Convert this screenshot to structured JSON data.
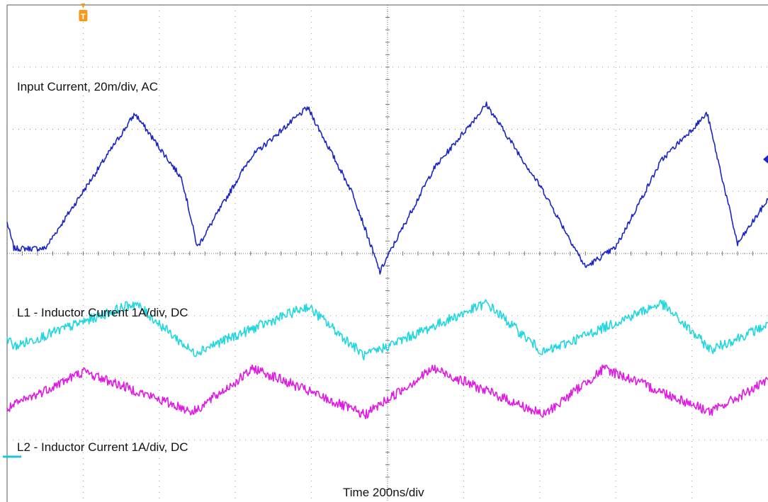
{
  "chart_data": {
    "type": "line",
    "title": "",
    "xlabel": "Time 200ns/div",
    "grid": true,
    "grid_divisions": {
      "x": 10,
      "y": 8
    },
    "trigger_marker": {
      "label": "T",
      "color": "#f59a1c"
    },
    "channel_marker": {
      "color": "#20c4d8"
    },
    "series": [
      {
        "name": "Input Current, 20m/div, AC",
        "color": "#1a26c4",
        "x_div": [
          0,
          0.09,
          0.5,
          1.0,
          1.68,
          2.3,
          2.5,
          3.2,
          3.95,
          4.55,
          4.9,
          5.0,
          5.6,
          6.3,
          7.05,
          7.6,
          8.0,
          8.6,
          9.2,
          9.6,
          10.0
        ],
        "y_div": [
          4.5,
          4.08,
          4.08,
          5.0,
          6.25,
          5.2,
          4.1,
          5.55,
          6.35,
          4.95,
          3.7,
          3.95,
          5.35,
          6.4,
          5.0,
          3.78,
          4.1,
          5.5,
          6.25,
          4.15,
          4.87
        ]
      },
      {
        "name": "L1 - Inductor Current 1A/div, DC",
        "color": "#21d6df",
        "x_div": [
          0,
          0.09,
          1.68,
          2.45,
          3.95,
          4.7,
          6.3,
          7.05,
          8.6,
          9.25,
          10.0
        ],
        "y_div": [
          2.65,
          2.5,
          3.2,
          2.4,
          3.15,
          2.35,
          3.2,
          2.4,
          3.2,
          2.45,
          2.85
        ]
      },
      {
        "name": "L2 - Inductor Current 1A/div, DC",
        "color": "#e01ae3",
        "x_div": [
          0,
          1.0,
          2.45,
          3.25,
          4.7,
          5.6,
          7.05,
          7.85,
          9.25,
          10.0
        ],
        "y_div": [
          1.5,
          2.1,
          1.45,
          2.15,
          1.4,
          2.15,
          1.4,
          2.15,
          1.45,
          1.95
        ]
      }
    ]
  }
}
